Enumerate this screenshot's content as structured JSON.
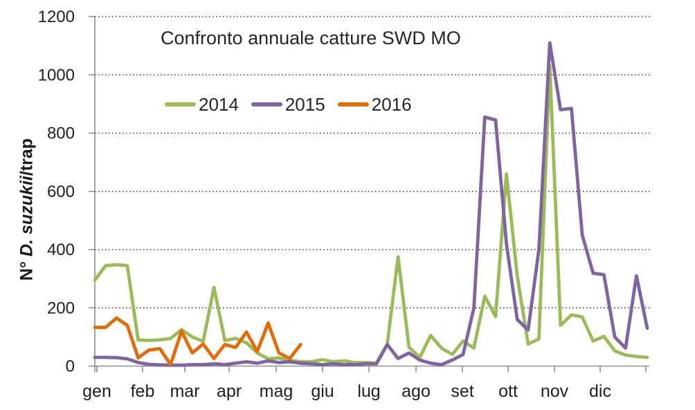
{
  "colors": {
    "background": "#FFFFFF",
    "axis": "#8E8E8E",
    "grid": "#3F3F3F",
    "text": "#1F1F1F"
  },
  "chart_data": {
    "type": "line",
    "title": "Confronto annuale catture SWD MO",
    "y_axis": {
      "label_prefix": "N° ",
      "label_italic": "D. suzukii",
      "label_suffix": "/trap",
      "ticks": [
        0,
        200,
        400,
        600,
        800,
        1000,
        1200
      ],
      "range": [
        0,
        1200
      ]
    },
    "x_axis": {
      "unit": "week",
      "months": [
        "gen",
        "feb",
        "mar",
        "apr",
        "mag",
        "giu",
        "lug",
        "ago",
        "set",
        "ott",
        "nov",
        "dic"
      ],
      "weeks_total": 52
    },
    "grid": "horizontal-dotted",
    "legend_position": "top-left-inset",
    "series": [
      {
        "name": "2014",
        "color": "#9BBB59",
        "values": [
          295,
          345,
          348,
          345,
          90,
          88,
          90,
          95,
          125,
          100,
          85,
          270,
          88,
          95,
          80,
          45,
          25,
          28,
          20,
          15,
          15,
          22,
          15,
          18,
          12,
          12,
          10,
          76,
          375,
          65,
          30,
          105,
          62,
          40,
          86,
          62,
          240,
          170,
          660,
          310,
          76,
          93,
          1030,
          140,
          176,
          169,
          86,
          102,
          52,
          38,
          33,
          30
        ]
      },
      {
        "name": "2015",
        "color": "#8064A2",
        "values": [
          30,
          30,
          29,
          25,
          12,
          6,
          4,
          3,
          3,
          5,
          5,
          8,
          5,
          10,
          15,
          10,
          18,
          12,
          15,
          10,
          8,
          5,
          8,
          5,
          5,
          8,
          8,
          74,
          26,
          45,
          21,
          10,
          5,
          21,
          40,
          200,
          855,
          845,
          420,
          160,
          124,
          400,
          1110,
          880,
          885,
          450,
          319,
          314,
          100,
          62,
          310,
          130
        ]
      },
      {
        "name": "2016",
        "color": "#E36C09",
        "values": [
          133,
          133,
          165,
          140,
          28,
          55,
          60,
          5,
          120,
          45,
          76,
          26,
          74,
          64,
          117,
          50,
          148,
          45,
          26,
          74
        ]
      }
    ]
  }
}
